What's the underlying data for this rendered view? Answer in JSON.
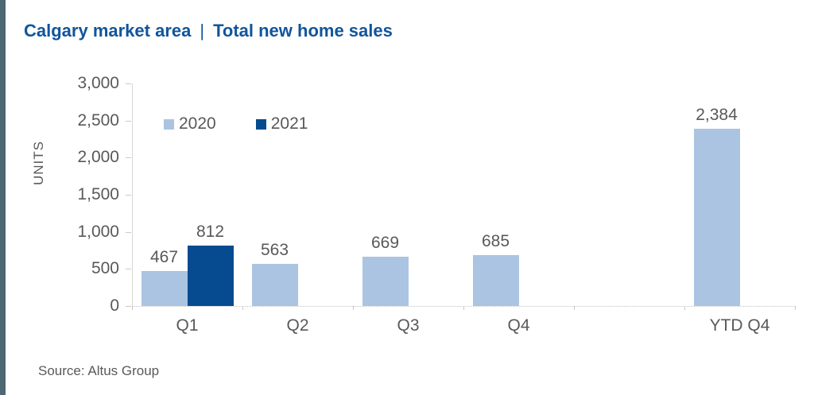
{
  "page": {
    "title_left": "Calgary market area",
    "title_separator": "|",
    "title_right": "Total new home sales",
    "source": "Source: Altus Group"
  },
  "colors": {
    "title_blue": "#10559b",
    "text_gray": "#595959",
    "left_strip": "#4d6872",
    "axis_gray": "#d6d6d6",
    "series_2020": "#abc4e2",
    "series_2021": "#064b8f"
  },
  "chart_data": {
    "type": "bar",
    "title": "Calgary market area | Total new home sales",
    "xlabel": "",
    "ylabel": "UNITS",
    "ylim": [
      0,
      3000
    ],
    "ytick_interval": 500,
    "ytick_labels": [
      "0",
      "500",
      "1,000",
      "1,500",
      "2,000",
      "2,500",
      "3,000"
    ],
    "categories": [
      "Q1",
      "Q2",
      "Q3",
      "Q4",
      "YTD Q4"
    ],
    "series": [
      {
        "name": "2020",
        "color": "#abc4e2",
        "values": [
          467,
          563,
          669,
          685,
          2384
        ]
      },
      {
        "name": "2021",
        "color": "#064b8f",
        "values": [
          812,
          null,
          null,
          null,
          null
        ]
      }
    ],
    "data_labels_shown": true,
    "grid": false,
    "legend_position": "top-inside-left"
  }
}
